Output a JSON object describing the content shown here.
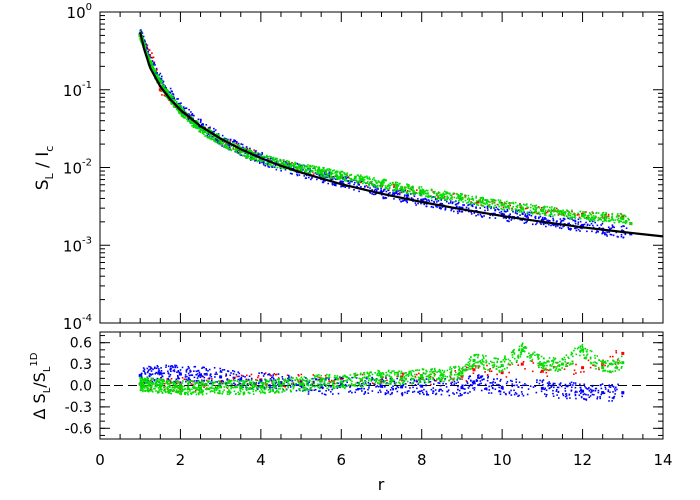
{
  "chart_data": [
    {
      "type": "scatter",
      "panel": "top",
      "ylabel_main": "S",
      "ylabel_sub1": "L",
      "ylabel_mid": " / I",
      "ylabel_sub2": "c",
      "xlim": [
        0,
        14
      ],
      "ylim": [
        0.0001,
        1
      ],
      "yscale": "log",
      "yticks": [
        {
          "value": 0.0001,
          "base": "10",
          "exp": "-4"
        },
        {
          "value": 0.001,
          "base": "10",
          "exp": "-3"
        },
        {
          "value": 0.01,
          "base": "10",
          "exp": "-2"
        },
        {
          "value": 0.1,
          "base": "10",
          "exp": "-1"
        },
        {
          "value": 1,
          "base": "10",
          "exp": "0"
        }
      ],
      "series": [
        {
          "color": "#000000",
          "style": "line",
          "x": [
            1.0,
            1.1,
            1.25,
            1.5,
            1.75,
            2,
            2.5,
            3,
            3.5,
            4,
            4.5,
            5,
            6,
            7,
            8,
            9,
            10,
            11,
            12,
            13,
            14
          ],
          "y": [
            0.55,
            0.33,
            0.19,
            0.11,
            0.075,
            0.055,
            0.034,
            0.0235,
            0.0172,
            0.0132,
            0.0105,
            0.0086,
            0.0061,
            0.0046,
            0.0036,
            0.0029,
            0.00238,
            0.002,
            0.0017,
            0.00148,
            0.0013
          ]
        },
        {
          "color": "#0000ff",
          "style": "points",
          "x": [
            1.0,
            1.2,
            1.4,
            1.6,
            1.8,
            2.0,
            2.3,
            2.6,
            3.0,
            3.4,
            3.8,
            4.2,
            4.6,
            5.0,
            5.5,
            6.0,
            7.0,
            8.0,
            9.0,
            10.0,
            11.0,
            12.0,
            12.5,
            13.0,
            13.2
          ],
          "y": [
            0.52,
            0.26,
            0.16,
            0.11,
            0.08,
            0.06,
            0.042,
            0.031,
            0.023,
            0.018,
            0.0145,
            0.012,
            0.0105,
            0.009,
            0.0078,
            0.0065,
            0.0048,
            0.0038,
            0.003,
            0.0025,
            0.0021,
            0.0018,
            0.0016,
            0.0015,
            0.0014
          ]
        },
        {
          "color": "#ff0000",
          "style": "points",
          "x": [
            1.0,
            1.5,
            2.0,
            3.0,
            4.0,
            5.0,
            6.0,
            7.0,
            7.5,
            8.0,
            9.0,
            9.4,
            10.0,
            11.0,
            12.0,
            13.0,
            13.2
          ],
          "y": [
            0.5,
            0.1,
            0.052,
            0.022,
            0.0135,
            0.0095,
            0.0075,
            0.0058,
            0.0052,
            0.0048,
            0.004,
            0.0036,
            0.0033,
            0.0028,
            0.0025,
            0.0023,
            0.0019
          ]
        },
        {
          "color": "#00dd00",
          "style": "points",
          "x": [
            1.0,
            1.2,
            1.4,
            1.6,
            1.8,
            2.0,
            2.3,
            2.6,
            3.0,
            3.4,
            3.8,
            4.2,
            4.6,
            5.0,
            5.5,
            6.0,
            6.5,
            7.0,
            7.5,
            8.0,
            8.5,
            9.0,
            9.5,
            10.0,
            10.5,
            11.0,
            11.5,
            12.0,
            13.0,
            13.2
          ],
          "y": [
            0.5,
            0.24,
            0.145,
            0.1,
            0.072,
            0.054,
            0.038,
            0.029,
            0.022,
            0.0172,
            0.0142,
            0.0122,
            0.0108,
            0.0098,
            0.0088,
            0.0079,
            0.007,
            0.0062,
            0.0055,
            0.0049,
            0.0044,
            0.004,
            0.0036,
            0.0033,
            0.003,
            0.0028,
            0.0026,
            0.0024,
            0.0022,
            0.0019
          ]
        }
      ]
    },
    {
      "type": "scatter",
      "panel": "bottom",
      "ylabel_main": "Δ S",
      "ylabel_sub1": "L",
      "ylabel_mid": "/S",
      "ylabel_sub2": "L",
      "ylabel_sup2": "1D",
      "xlabel": "r",
      "xlim": [
        0,
        14
      ],
      "ylim": [
        -0.75,
        0.75
      ],
      "xticks": [
        "0",
        "2",
        "4",
        "6",
        "8",
        "10",
        "12",
        "14"
      ],
      "yticks": [
        "-0.6",
        "-0.3",
        "0.0",
        "0.3",
        "0.6"
      ],
      "reference_line": {
        "y": 0,
        "style": "dashed"
      },
      "series": [
        {
          "color": "#0000ff",
          "x": [
            1.0,
            1.5,
            2.0,
            2.5,
            3.0,
            3.5,
            4.0,
            4.5,
            5.0,
            5.5,
            6.0,
            7.0,
            7.5,
            8.0,
            9.0,
            9.3,
            10.0,
            11.0,
            12.0,
            12.5,
            13.0
          ],
          "y": [
            0.14,
            0.17,
            0.16,
            0.15,
            0.12,
            0.08,
            0.06,
            0.04,
            0.0,
            -0.02,
            0.01,
            -0.01,
            -0.02,
            -0.01,
            -0.03,
            0.05,
            -0.03,
            -0.04,
            -0.08,
            -0.1,
            -0.1
          ]
        },
        {
          "color": "#ff0000",
          "x": [
            1.0,
            2.0,
            3.0,
            4.0,
            5.0,
            5.5,
            6.0,
            7.0,
            7.5,
            8.0,
            9.0,
            9.3,
            10.0,
            10.5,
            11.0,
            12.0,
            12.5,
            13.0
          ],
          "y": [
            0.02,
            0.01,
            0.05,
            0.08,
            0.06,
            0.09,
            0.1,
            0.07,
            0.12,
            0.1,
            0.13,
            0.22,
            0.18,
            0.3,
            0.2,
            0.25,
            0.3,
            0.45
          ]
        },
        {
          "color": "#00dd00",
          "x": [
            1.0,
            1.5,
            2.0,
            2.5,
            3.0,
            3.5,
            4.0,
            4.5,
            5.0,
            5.5,
            6.0,
            6.5,
            7.0,
            7.5,
            8.0,
            8.5,
            9.0,
            9.3,
            10.0,
            10.5,
            11.0,
            11.5,
            12.0,
            12.5,
            13.0
          ],
          "y": [
            0.02,
            -0.01,
            -0.03,
            -0.04,
            -0.02,
            -0.03,
            -0.02,
            0.0,
            0.02,
            0.06,
            0.05,
            0.08,
            0.12,
            0.1,
            0.14,
            0.15,
            0.18,
            0.35,
            0.28,
            0.5,
            0.3,
            0.3,
            0.5,
            0.25,
            0.32
          ]
        }
      ]
    }
  ]
}
